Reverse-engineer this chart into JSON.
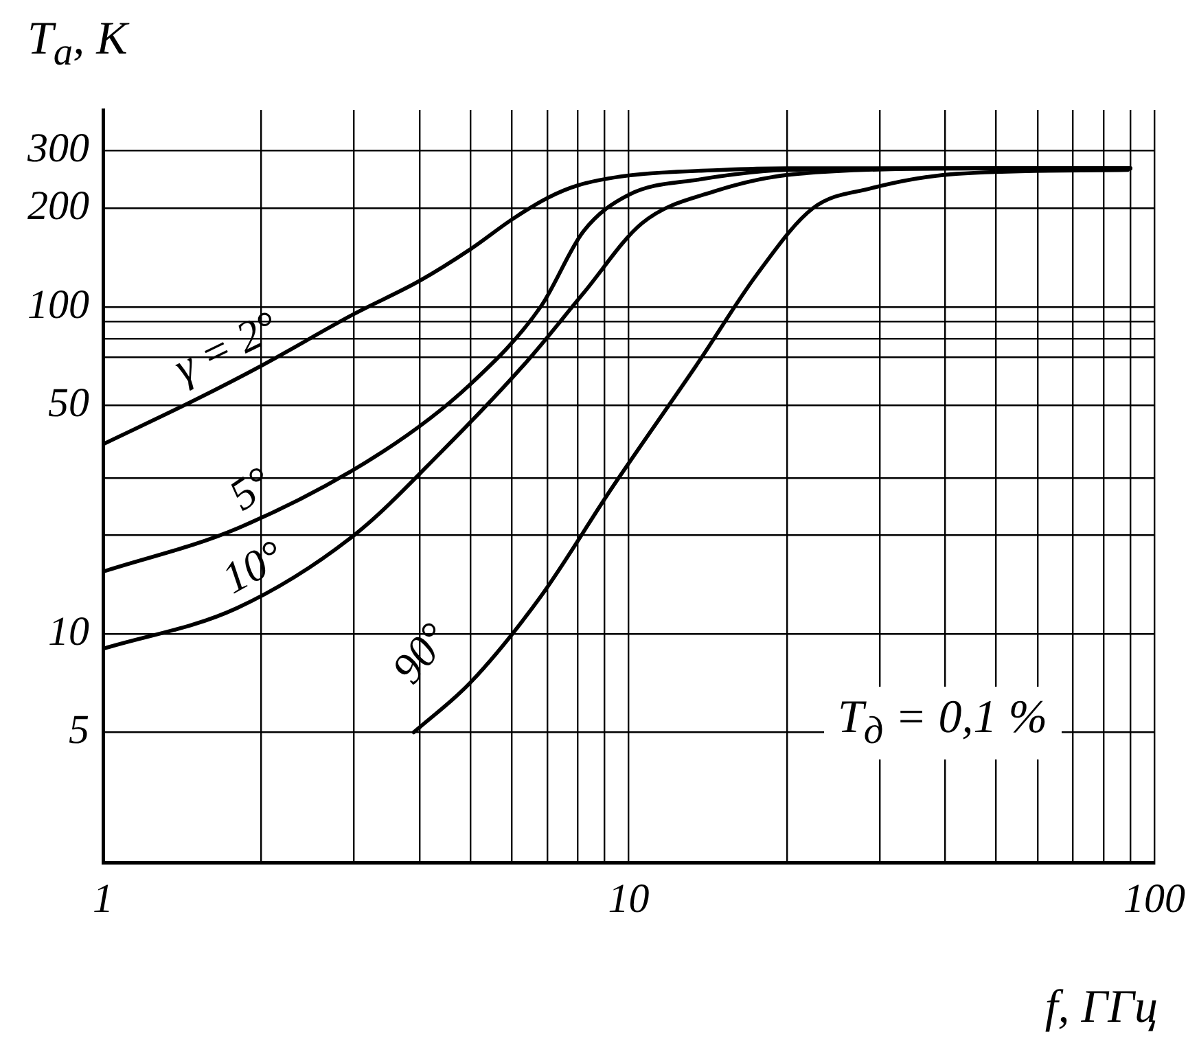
{
  "chart_data": {
    "type": "line",
    "xlabel": "f, ГГц",
    "ylabel": "T$_{а}$, К",
    "log": "xy",
    "grid": true,
    "legend": false,
    "marker": "none",
    "line_style": "solid",
    "xlim": [
      1,
      100
    ],
    "ylim": [
      2,
      400
    ],
    "xticks": [
      1,
      {
        "value": 2,
        "label": null
      },
      {
        "value": 3,
        "label": null
      },
      {
        "value": 4,
        "label": null
      },
      {
        "value": 5,
        "label": null
      },
      {
        "value": 6,
        "label": null
      },
      {
        "value": 7,
        "label": null
      },
      {
        "value": 8,
        "label": null
      },
      {
        "value": 9,
        "label": null
      },
      10,
      {
        "value": 20,
        "label": null
      },
      {
        "value": 30,
        "label": null
      },
      {
        "value": 40,
        "label": null
      },
      {
        "value": 50,
        "label": null
      },
      {
        "value": 60,
        "label": null
      },
      {
        "value": 70,
        "label": null
      },
      {
        "value": 80,
        "label": null
      },
      {
        "value": 90,
        "label": null
      },
      100
    ],
    "yticks": [
      5,
      10,
      {
        "value": 20,
        "label": null
      },
      {
        "value": 30,
        "label": null
      },
      50,
      {
        "value": 70,
        "label": null
      },
      {
        "value": 80,
        "label": null
      },
      {
        "value": 90,
        "label": null
      },
      100,
      200,
      300
    ],
    "series": [
      {
        "name": "γ = 2°",
        "color": "#000000",
        "x": [
          1,
          1.5,
          2,
          3,
          4,
          5,
          6,
          7,
          8,
          10,
          15,
          20,
          50,
          90
        ],
        "values": [
          38,
          52,
          66,
          95,
          120,
          150,
          185,
          215,
          235,
          252,
          262,
          265,
          265,
          265
        ]
      },
      {
        "name": "5°",
        "color": "#000000",
        "x": [
          1,
          1.8,
          3.4,
          5,
          6.8,
          8.2,
          10,
          13.6,
          20,
          50,
          90
        ],
        "values": [
          15.5,
          21,
          36,
          58,
          100,
          170,
          220,
          245,
          262,
          265,
          265
        ]
      },
      {
        "name": "10°",
        "color": "#000000",
        "x": [
          1,
          1.8,
          3,
          4.4,
          6.4,
          8.2,
          10.6,
          14.5,
          21,
          50,
          90
        ],
        "values": [
          9,
          12,
          20,
          36,
          68,
          110,
          180,
          225,
          255,
          265,
          265
        ]
      },
      {
        "name": "90°",
        "color": "#000000",
        "x": [
          3.9,
          5,
          6.8,
          9.3,
          13.6,
          17.5,
          22.4,
          28.8,
          42,
          89
        ],
        "values": [
          5,
          7.1,
          13,
          28,
          68,
          125,
          200,
          230,
          255,
          262
        ]
      }
    ],
    "annotations": [
      "T$_{д}$ = 0,1 %"
    ]
  }
}
